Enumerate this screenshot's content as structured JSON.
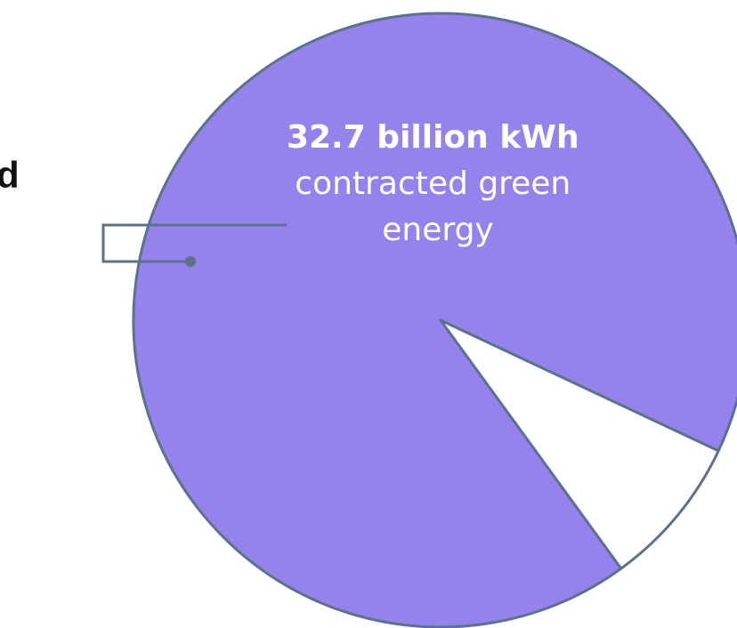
{
  "chart_data": {
    "type": "pie",
    "slices": [
      {
        "label_line1": "32.7 billion kWh",
        "label_line2": "contracted green",
        "label_line3": "energy",
        "color": "#9582ec"
      },
      {
        "color": "#ffffff"
      }
    ],
    "slice_share_fraction": [
      0.92,
      0.08
    ],
    "outline_color": "#59738c",
    "leader_color": "#59738c",
    "cut_off_label": "d"
  }
}
